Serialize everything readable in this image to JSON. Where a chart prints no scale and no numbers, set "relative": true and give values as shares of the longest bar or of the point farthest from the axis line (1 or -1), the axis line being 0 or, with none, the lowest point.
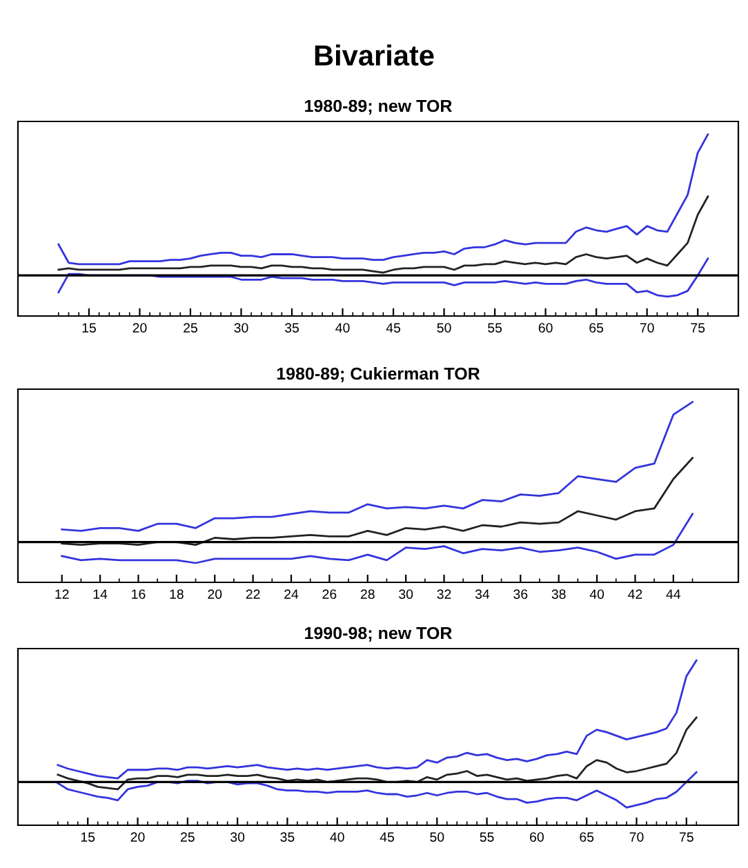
{
  "chart_data": [
    {
      "type": "line",
      "title": "Bivariate",
      "subtitle": "1980-89; new TOR",
      "relative": true,
      "tick_labels": "x",
      "grid": false,
      "legend": false,
      "line_style": "solid",
      "marker": "none",
      "x": [
        12,
        13,
        14,
        15,
        16,
        17,
        18,
        19,
        20,
        21,
        22,
        23,
        24,
        25,
        26,
        27,
        28,
        29,
        30,
        31,
        32,
        33,
        34,
        35,
        36,
        37,
        38,
        39,
        40,
        41,
        42,
        43,
        44,
        45,
        46,
        47,
        48,
        49,
        50,
        51,
        52,
        53,
        54,
        55,
        56,
        57,
        58,
        59,
        60,
        61,
        62,
        63,
        64,
        65,
        66,
        67,
        68,
        69,
        70,
        71,
        72,
        73,
        74,
        75,
        76
      ],
      "xlim": [
        8,
        79
      ],
      "xticks": [
        15,
        20,
        25,
        30,
        35,
        40,
        45,
        50,
        55,
        60,
        65,
        70,
        75
      ],
      "ref_lines": [
        {
          "axis": "y",
          "value": 0,
          "color": "#000000"
        }
      ],
      "series": [
        {
          "color": "#3333dd",
          "values": [
            0.22,
            0.09,
            0.08,
            0.08,
            0.08,
            0.08,
            0.08,
            0.1,
            0.1,
            0.1,
            0.1,
            0.11,
            0.11,
            0.12,
            0.14,
            0.15,
            0.16,
            0.16,
            0.14,
            0.14,
            0.13,
            0.15,
            0.15,
            0.15,
            0.14,
            0.13,
            0.13,
            0.13,
            0.12,
            0.12,
            0.12,
            0.11,
            0.11,
            0.13,
            0.14,
            0.15,
            0.16,
            0.16,
            0.17,
            0.15,
            0.19,
            0.2,
            0.2,
            0.22,
            0.25,
            0.23,
            0.22,
            0.23,
            0.23,
            0.23,
            0.23,
            0.31,
            0.34,
            0.32,
            0.31,
            0.33,
            0.35,
            0.29,
            0.35,
            0.32,
            0.31,
            0.44,
            0.57,
            0.87,
            1
          ]
        },
        {
          "color": "#222222",
          "values": [
            0.04,
            0.05,
            0.04,
            0.04,
            0.04,
            0.04,
            0.04,
            0.05,
            0.05,
            0.05,
            0.05,
            0.05,
            0.05,
            0.06,
            0.06,
            0.07,
            0.07,
            0.07,
            0.06,
            0.06,
            0.05,
            0.07,
            0.07,
            0.06,
            0.06,
            0.05,
            0.05,
            0.04,
            0.04,
            0.04,
            0.04,
            0.03,
            0.02,
            0.04,
            0.05,
            0.05,
            0.06,
            0.06,
            0.06,
            0.04,
            0.07,
            0.07,
            0.08,
            0.08,
            0.1,
            0.09,
            0.08,
            0.09,
            0.08,
            0.09,
            0.08,
            0.13,
            0.15,
            0.13,
            0.12,
            0.13,
            0.14,
            0.09,
            0.12,
            0.09,
            0.07,
            0.15,
            0.23,
            0.43,
            0.56
          ]
        },
        {
          "color": "#3333dd",
          "values": [
            -0.12,
            0.01,
            0.01,
            0,
            0,
            0,
            0,
            0,
            0,
            0,
            -0.01,
            -0.01,
            -0.01,
            -0.01,
            -0.01,
            -0.01,
            -0.01,
            -0.01,
            -0.03,
            -0.03,
            -0.03,
            -0.01,
            -0.02,
            -0.02,
            -0.02,
            -0.03,
            -0.03,
            -0.03,
            -0.04,
            -0.04,
            -0.04,
            -0.05,
            -0.06,
            -0.05,
            -0.05,
            -0.05,
            -0.05,
            -0.05,
            -0.05,
            -0.07,
            -0.05,
            -0.05,
            -0.05,
            -0.05,
            -0.04,
            -0.05,
            -0.06,
            -0.05,
            -0.06,
            -0.06,
            -0.06,
            -0.04,
            -0.03,
            -0.05,
            -0.06,
            -0.06,
            -0.06,
            -0.12,
            -0.11,
            -0.14,
            -0.15,
            -0.14,
            -0.11,
            0,
            0.12
          ]
        }
      ]
    },
    {
      "type": "line",
      "title": "1980-89; Cukierman TOR",
      "relative": true,
      "tick_labels": "x",
      "grid": false,
      "legend": false,
      "line_style": "solid",
      "marker": "none",
      "x": [
        12,
        13,
        14,
        15,
        16,
        17,
        18,
        19,
        20,
        21,
        22,
        23,
        24,
        25,
        26,
        27,
        28,
        29,
        30,
        31,
        32,
        33,
        34,
        35,
        36,
        37,
        38,
        39,
        40,
        41,
        42,
        43,
        44,
        45
      ],
      "xlim": [
        9.7,
        47.4
      ],
      "xticks": [
        12,
        14,
        16,
        18,
        20,
        22,
        24,
        26,
        28,
        30,
        32,
        34,
        36,
        38,
        40,
        42,
        44
      ],
      "ref_lines": [
        {
          "axis": "y",
          "value": 0,
          "color": "#000000"
        }
      ],
      "series": [
        {
          "color": "#3333dd",
          "values": [
            0.09,
            0.08,
            0.1,
            0.1,
            0.08,
            0.13,
            0.13,
            0.1,
            0.17,
            0.17,
            0.18,
            0.18,
            0.2,
            0.22,
            0.21,
            0.21,
            0.27,
            0.24,
            0.25,
            0.24,
            0.26,
            0.24,
            0.3,
            0.29,
            0.34,
            0.33,
            0.35,
            0.47,
            0.45,
            0.43,
            0.53,
            0.56,
            0.91,
            1
          ]
        },
        {
          "color": "#222222",
          "values": [
            -0.01,
            -0.02,
            -0.01,
            -0.01,
            -0.02,
            0,
            0,
            -0.02,
            0.03,
            0.02,
            0.03,
            0.03,
            0.04,
            0.05,
            0.04,
            0.04,
            0.08,
            0.05,
            0.1,
            0.09,
            0.11,
            0.08,
            0.12,
            0.11,
            0.14,
            0.13,
            0.14,
            0.22,
            0.19,
            0.16,
            0.22,
            0.24,
            0.45,
            0.6
          ]
        },
        {
          "color": "#3333dd",
          "values": [
            -0.1,
            -0.13,
            -0.12,
            -0.13,
            -0.13,
            -0.13,
            -0.13,
            -0.15,
            -0.12,
            -0.12,
            -0.12,
            -0.12,
            -0.12,
            -0.1,
            -0.12,
            -0.13,
            -0.09,
            -0.13,
            -0.04,
            -0.05,
            -0.03,
            -0.08,
            -0.05,
            -0.06,
            -0.04,
            -0.07,
            -0.06,
            -0.04,
            -0.07,
            -0.12,
            -0.09,
            -0.09,
            -0.02,
            0.2
          ]
        }
      ]
    },
    {
      "type": "line",
      "title": "1990-98; new TOR",
      "relative": true,
      "tick_labels": "x",
      "grid": false,
      "legend": false,
      "line_style": "solid",
      "marker": "none",
      "x": [
        12,
        13,
        14,
        15,
        16,
        17,
        18,
        19,
        20,
        21,
        22,
        23,
        24,
        25,
        26,
        27,
        28,
        29,
        30,
        31,
        32,
        33,
        34,
        35,
        36,
        37,
        38,
        39,
        40,
        41,
        42,
        43,
        44,
        45,
        46,
        47,
        48,
        49,
        50,
        51,
        52,
        53,
        54,
        55,
        56,
        57,
        58,
        59,
        60,
        61,
        62,
        63,
        64,
        65,
        66,
        67,
        68,
        69,
        70,
        71,
        72,
        73,
        74,
        75,
        76
      ],
      "xlim": [
        8,
        80.2
      ],
      "xticks": [
        15,
        20,
        25,
        30,
        35,
        40,
        45,
        50,
        55,
        60,
        65,
        70,
        75
      ],
      "ref_lines": [
        {
          "axis": "y",
          "value": 0,
          "color": "#000000"
        }
      ],
      "series": [
        {
          "color": "#3333dd",
          "values": [
            0.14,
            0.11,
            0.09,
            0.07,
            0.05,
            0.04,
            0.03,
            0.1,
            0.1,
            0.1,
            0.11,
            0.11,
            0.1,
            0.12,
            0.12,
            0.11,
            0.12,
            0.13,
            0.12,
            0.13,
            0.14,
            0.12,
            0.11,
            0.1,
            0.11,
            0.1,
            0.11,
            0.1,
            0.11,
            0.12,
            0.13,
            0.14,
            0.12,
            0.11,
            0.12,
            0.11,
            0.12,
            0.18,
            0.16,
            0.2,
            0.21,
            0.24,
            0.22,
            0.23,
            0.2,
            0.18,
            0.19,
            0.17,
            0.19,
            0.22,
            0.23,
            0.25,
            0.23,
            0.38,
            0.43,
            0.41,
            0.38,
            0.35,
            0.37,
            0.39,
            0.41,
            0.44,
            0.57,
            0.87,
            1
          ]
        },
        {
          "color": "#222222",
          "values": [
            0.06,
            0.03,
            0.01,
            -0.01,
            -0.04,
            -0.05,
            -0.06,
            0.02,
            0.03,
            0.03,
            0.05,
            0.05,
            0.04,
            0.06,
            0.06,
            0.05,
            0.05,
            0.06,
            0.05,
            0.05,
            0.06,
            0.04,
            0.03,
            0.01,
            0.02,
            0.01,
            0.02,
            0,
            0.01,
            0.02,
            0.03,
            0.03,
            0.02,
            0,
            0,
            0.01,
            0,
            0.04,
            0.02,
            0.06,
            0.07,
            0.09,
            0.05,
            0.06,
            0.04,
            0.02,
            0.03,
            0.01,
            0.02,
            0.03,
            0.05,
            0.06,
            0.03,
            0.13,
            0.18,
            0.16,
            0.11,
            0.08,
            0.09,
            0.11,
            0.13,
            0.15,
            0.24,
            0.43,
            0.53
          ]
        },
        {
          "color": "#3333dd",
          "values": [
            -0.01,
            -0.06,
            -0.08,
            -0.1,
            -0.12,
            -0.13,
            -0.15,
            -0.06,
            -0.04,
            -0.03,
            0,
            0,
            -0.01,
            0.01,
            0.01,
            -0.01,
            0,
            0,
            -0.02,
            -0.01,
            -0.01,
            -0.03,
            -0.06,
            -0.07,
            -0.07,
            -0.08,
            -0.08,
            -0.09,
            -0.08,
            -0.08,
            -0.08,
            -0.07,
            -0.09,
            -0.1,
            -0.1,
            -0.12,
            -0.11,
            -0.09,
            -0.11,
            -0.09,
            -0.08,
            -0.08,
            -0.1,
            -0.09,
            -0.12,
            -0.14,
            -0.14,
            -0.17,
            -0.16,
            -0.14,
            -0.13,
            -0.13,
            -0.15,
            -0.11,
            -0.07,
            -0.11,
            -0.15,
            -0.21,
            -0.19,
            -0.17,
            -0.14,
            -0.13,
            -0.08,
            0,
            0.08
          ]
        }
      ]
    }
  ]
}
